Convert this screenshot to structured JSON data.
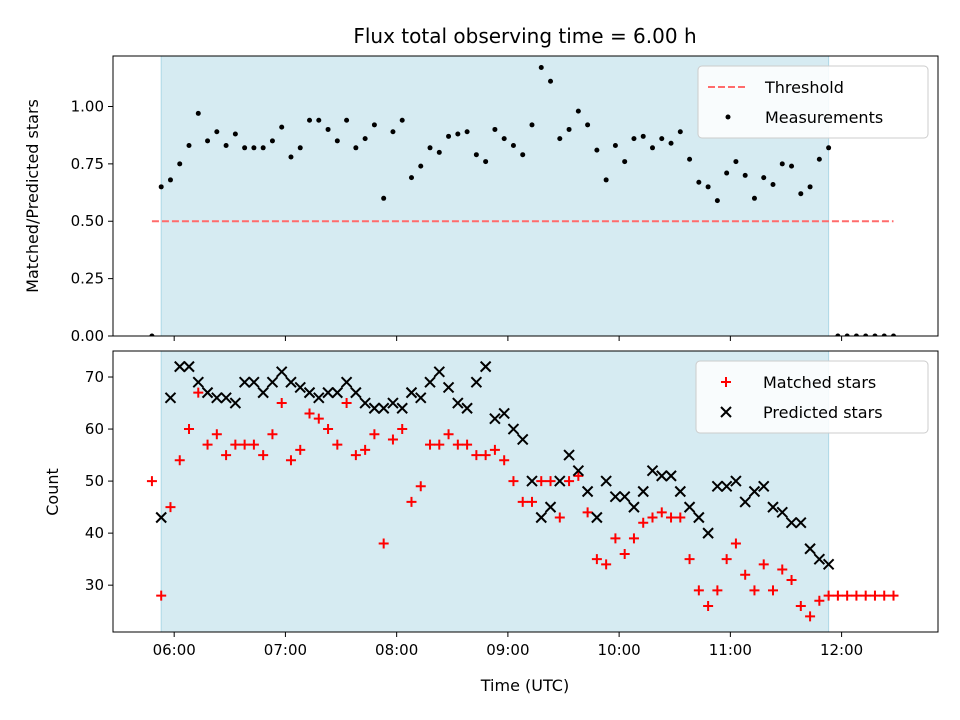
{
  "title": "Flux total observing time = 6.00 h",
  "colors": {
    "shade": "#add8e6",
    "threshold": "#ff6b6b",
    "measurement": "#000000",
    "matched": "#ff0000",
    "predicted": "#000000"
  },
  "chart_data": [
    {
      "type": "scatter",
      "title": "Flux total observing time = 6.00 h",
      "xlabel": "",
      "ylabel": "Matched/Predicted stars",
      "xlim": [
        "05:27",
        "12:52"
      ],
      "ylim": [
        0,
        1.22
      ],
      "x_ticks": [
        "06:00",
        "07:00",
        "08:00",
        "09:00",
        "10:00",
        "11:00",
        "12:00"
      ],
      "y_ticks": [
        "0.00",
        "0.25",
        "0.50",
        "0.75",
        "1.00"
      ],
      "shaded_span": [
        "05:53",
        "11:53"
      ],
      "legend_position": "upper right",
      "threshold": {
        "name": "Threshold",
        "x": [
          "05:48",
          "12:28"
        ],
        "y": 0.5,
        "style": "dashed"
      },
      "series": [
        {
          "name": "Measurements",
          "x": [
            "05:48",
            "05:53",
            "05:58",
            "06:03",
            "06:08",
            "06:13",
            "06:18",
            "06:23",
            "06:28",
            "06:33",
            "06:38",
            "06:43",
            "06:48",
            "06:53",
            "06:58",
            "07:03",
            "07:08",
            "07:13",
            "07:18",
            "07:23",
            "07:28",
            "07:33",
            "07:38",
            "07:43",
            "07:48",
            "07:53",
            "07:58",
            "08:03",
            "08:08",
            "08:13",
            "08:18",
            "08:23",
            "08:28",
            "08:33",
            "08:38",
            "08:43",
            "08:48",
            "08:53",
            "08:58",
            "09:03",
            "09:08",
            "09:13",
            "09:18",
            "09:23",
            "09:28",
            "09:33",
            "09:38",
            "09:43",
            "09:48",
            "09:53",
            "09:58",
            "10:03",
            "10:08",
            "10:13",
            "10:18",
            "10:23",
            "10:28",
            "10:33",
            "10:38",
            "10:43",
            "10:48",
            "10:53",
            "10:58",
            "11:03",
            "11:08",
            "11:13",
            "11:18",
            "11:23",
            "11:28",
            "11:33",
            "11:38",
            "11:43",
            "11:48",
            "11:53",
            "11:58",
            "12:03",
            "12:08",
            "12:13",
            "12:18",
            "12:23",
            "12:28"
          ],
          "y": [
            0.0,
            0.65,
            0.68,
            0.75,
            0.83,
            0.97,
            0.85,
            0.89,
            0.83,
            0.88,
            0.82,
            0.82,
            0.82,
            0.85,
            0.91,
            0.78,
            0.82,
            0.94,
            0.94,
            0.9,
            0.85,
            0.94,
            0.82,
            0.86,
            0.92,
            0.6,
            0.89,
            0.94,
            0.69,
            0.74,
            0.82,
            0.8,
            0.87,
            0.88,
            0.89,
            0.79,
            0.76,
            0.9,
            0.86,
            0.83,
            0.79,
            0.92,
            1.17,
            1.11,
            0.86,
            0.9,
            0.98,
            0.92,
            0.81,
            0.68,
            0.83,
            0.76,
            0.86,
            0.87,
            0.82,
            0.86,
            0.84,
            0.89,
            0.77,
            0.67,
            0.65,
            0.59,
            0.71,
            0.76,
            0.7,
            0.6,
            0.69,
            0.66,
            0.75,
            0.74,
            0.62,
            0.65,
            0.77,
            0.82,
            0.0,
            0.0,
            0.0,
            0.0,
            0.0,
            0.0,
            0.0
          ]
        }
      ]
    },
    {
      "type": "scatter",
      "title": "",
      "xlabel": "Time (UTC)",
      "ylabel": "Count",
      "xlim": [
        "05:27",
        "12:52"
      ],
      "ylim": [
        21,
        75
      ],
      "x_ticks": [
        "06:00",
        "07:00",
        "08:00",
        "09:00",
        "10:00",
        "11:00",
        "12:00"
      ],
      "y_ticks": [
        "30",
        "40",
        "50",
        "60",
        "70"
      ],
      "shaded_span": [
        "05:53",
        "11:53"
      ],
      "legend_position": "upper right",
      "series": [
        {
          "name": "Matched stars",
          "marker": "plus",
          "x": [
            "05:48",
            "05:53",
            "05:58",
            "06:03",
            "06:08",
            "06:13",
            "06:18",
            "06:23",
            "06:28",
            "06:33",
            "06:38",
            "06:43",
            "06:48",
            "06:53",
            "06:58",
            "07:03",
            "07:08",
            "07:13",
            "07:18",
            "07:23",
            "07:28",
            "07:33",
            "07:38",
            "07:43",
            "07:48",
            "07:53",
            "07:58",
            "08:03",
            "08:08",
            "08:13",
            "08:18",
            "08:23",
            "08:28",
            "08:33",
            "08:38",
            "08:43",
            "08:48",
            "08:53",
            "08:58",
            "09:03",
            "09:08",
            "09:13",
            "09:18",
            "09:23",
            "09:28",
            "09:33",
            "09:38",
            "09:43",
            "09:48",
            "09:53",
            "09:58",
            "10:03",
            "10:08",
            "10:13",
            "10:18",
            "10:23",
            "10:28",
            "10:33",
            "10:38",
            "10:43",
            "10:48",
            "10:53",
            "10:58",
            "11:03",
            "11:08",
            "11:13",
            "11:18",
            "11:23",
            "11:28",
            "11:33",
            "11:38",
            "11:43",
            "11:48",
            "11:53",
            "11:58",
            "12:03",
            "12:08",
            "12:13",
            "12:18",
            "12:23",
            "12:28"
          ],
          "y": [
            50,
            28,
            45,
            54,
            60,
            67,
            57,
            59,
            55,
            57,
            57,
            57,
            55,
            59,
            65,
            54,
            56,
            63,
            62,
            60,
            57,
            65,
            55,
            56,
            59,
            38,
            58,
            60,
            46,
            49,
            57,
            57,
            59,
            57,
            57,
            55,
            55,
            56,
            54,
            50,
            46,
            46,
            50,
            50,
            43,
            50,
            51,
            44,
            35,
            34,
            39,
            36,
            39,
            42,
            43,
            44,
            43,
            43,
            35,
            29,
            26,
            29,
            35,
            38,
            32,
            29,
            34,
            29,
            33,
            31,
            26,
            24,
            27,
            28,
            28,
            28,
            28,
            28,
            28,
            28,
            28
          ]
        },
        {
          "name": "Predicted stars",
          "marker": "x",
          "x": [
            "05:53",
            "05:58",
            "06:03",
            "06:08",
            "06:13",
            "06:18",
            "06:23",
            "06:28",
            "06:33",
            "06:38",
            "06:43",
            "06:48",
            "06:53",
            "06:58",
            "07:03",
            "07:08",
            "07:13",
            "07:18",
            "07:23",
            "07:28",
            "07:33",
            "07:38",
            "07:43",
            "07:48",
            "07:53",
            "07:58",
            "08:03",
            "08:08",
            "08:13",
            "08:18",
            "08:23",
            "08:28",
            "08:33",
            "08:38",
            "08:43",
            "08:48",
            "08:53",
            "08:58",
            "09:03",
            "09:08",
            "09:13",
            "09:18",
            "09:23",
            "09:28",
            "09:33",
            "09:38",
            "09:43",
            "09:48",
            "09:53",
            "09:58",
            "10:03",
            "10:08",
            "10:13",
            "10:18",
            "10:23",
            "10:28",
            "10:33",
            "10:38",
            "10:43",
            "10:48",
            "10:53",
            "10:58",
            "11:03",
            "11:08",
            "11:13",
            "11:18",
            "11:23",
            "11:28",
            "11:33",
            "11:38",
            "11:43",
            "11:48",
            "11:53"
          ],
          "y": [
            43,
            66,
            72,
            72,
            69,
            67,
            66,
            66,
            65,
            69,
            69,
            67,
            69,
            71,
            69,
            68,
            67,
            66,
            67,
            67,
            69,
            67,
            65,
            64,
            64,
            65,
            64,
            67,
            66,
            69,
            71,
            68,
            65,
            64,
            69,
            72,
            62,
            63,
            60,
            58,
            50,
            43,
            45,
            50,
            55,
            52,
            48,
            43,
            50,
            47,
            47,
            45,
            48,
            52,
            51,
            51,
            48,
            45,
            43,
            40,
            49,
            49,
            50,
            46,
            48,
            49,
            45,
            44,
            42,
            42,
            37,
            35,
            34
          ]
        }
      ]
    }
  ]
}
